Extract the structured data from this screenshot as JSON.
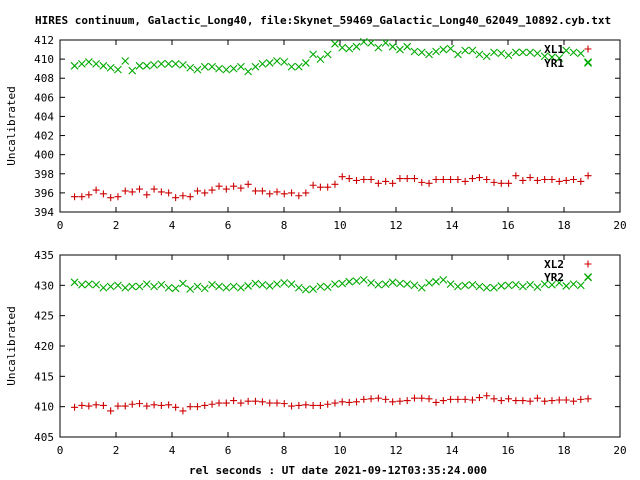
{
  "title": "HIRES continuum, Galactic_Long40, file:Skynet_59469_Galactic_Long40_62049_10892.cyb.txt",
  "xlabel": "rel seconds : UT date 2021-09-12T03:35:24.000",
  "colors": {
    "red": "#cc0000",
    "green": "#00aa00",
    "axis": "#000000",
    "background": "#ffffff"
  },
  "chart_data": [
    {
      "type": "scatter",
      "ylabel": "Uncalibrated",
      "xlim": [
        0,
        20
      ],
      "ylim": [
        394,
        412
      ],
      "xticks": [
        0,
        2,
        4,
        6,
        8,
        10,
        12,
        14,
        16,
        18,
        20
      ],
      "yticks": [
        394,
        396,
        398,
        400,
        402,
        404,
        406,
        408,
        410,
        412
      ],
      "grid": false,
      "legend_position": "top-right",
      "x": [
        0.52,
        0.78,
        1.03,
        1.29,
        1.55,
        1.81,
        2.07,
        2.33,
        2.58,
        2.84,
        3.1,
        3.36,
        3.62,
        3.88,
        4.13,
        4.39,
        4.65,
        4.91,
        5.17,
        5.43,
        5.68,
        5.94,
        6.2,
        6.46,
        6.72,
        6.98,
        7.23,
        7.49,
        7.75,
        8.01,
        8.27,
        8.53,
        8.78,
        9.04,
        9.3,
        9.56,
        9.82,
        10.08,
        10.33,
        10.59,
        10.85,
        11.11,
        11.37,
        11.63,
        11.88,
        12.14,
        12.4,
        12.66,
        12.92,
        13.18,
        13.43,
        13.69,
        13.95,
        14.21,
        14.47,
        14.73,
        14.98,
        15.24,
        15.5,
        15.76,
        16.02,
        16.28,
        16.53,
        16.79,
        17.05,
        17.31,
        17.57,
        17.83,
        18.08,
        18.34,
        18.6,
        18.86
      ],
      "series": [
        {
          "name": "XL1",
          "marker": "plus",
          "color": "#cc0000",
          "values": [
            395.6,
            395.6,
            395.8,
            396.3,
            395.9,
            395.5,
            395.6,
            396.2,
            396.1,
            396.4,
            395.8,
            396.4,
            396.1,
            396.0,
            395.5,
            395.7,
            395.6,
            396.2,
            396.0,
            396.3,
            396.7,
            396.4,
            396.7,
            396.5,
            396.9,
            396.2,
            396.2,
            395.9,
            396.1,
            395.9,
            396.0,
            395.7,
            396.0,
            396.8,
            396.6,
            396.6,
            396.9,
            397.7,
            397.5,
            397.3,
            397.4,
            397.4,
            397.0,
            397.2,
            397.0,
            397.5,
            397.5,
            397.5,
            397.1,
            397.0,
            397.4,
            397.4,
            397.4,
            397.4,
            397.2,
            397.5,
            397.6,
            397.4,
            397.1,
            397.0,
            397.0,
            397.8,
            397.3,
            397.6,
            397.3,
            397.4,
            397.4,
            397.2,
            397.3,
            397.4,
            397.2,
            397.8
          ]
        },
        {
          "name": "YR1",
          "marker": "cross",
          "color": "#00aa00",
          "values": [
            409.3,
            409.5,
            409.7,
            409.5,
            409.3,
            409.1,
            408.9,
            409.8,
            408.8,
            409.3,
            409.3,
            409.4,
            409.5,
            409.5,
            409.5,
            409.4,
            409.1,
            408.9,
            409.2,
            409.2,
            409.0,
            408.9,
            409.0,
            409.2,
            408.7,
            409.2,
            409.5,
            409.6,
            409.8,
            409.7,
            409.2,
            409.2,
            409.6,
            410.5,
            410.0,
            410.5,
            411.6,
            411.2,
            411.1,
            411.3,
            411.8,
            411.7,
            411.2,
            411.7,
            411.3,
            411.0,
            411.3,
            410.8,
            410.7,
            410.5,
            410.8,
            411.0,
            411.1,
            410.5,
            410.9,
            410.9,
            410.5,
            410.3,
            410.7,
            410.6,
            410.4,
            410.7,
            410.7,
            410.7,
            410.6,
            410.3,
            410.2,
            410.1,
            410.9,
            410.7,
            410.6,
            409.7
          ]
        }
      ]
    },
    {
      "type": "scatter",
      "ylabel": "Uncalibrated",
      "xlim": [
        0,
        20
      ],
      "ylim": [
        405,
        435
      ],
      "xticks": [
        0,
        2,
        4,
        6,
        8,
        10,
        12,
        14,
        16,
        18,
        20
      ],
      "yticks": [
        405,
        410,
        415,
        420,
        425,
        430,
        435
      ],
      "grid": false,
      "legend_position": "top-right",
      "x": [
        0.52,
        0.78,
        1.03,
        1.29,
        1.55,
        1.81,
        2.07,
        2.33,
        2.58,
        2.84,
        3.1,
        3.36,
        3.62,
        3.88,
        4.13,
        4.39,
        4.65,
        4.91,
        5.17,
        5.43,
        5.68,
        5.94,
        6.2,
        6.46,
        6.72,
        6.98,
        7.23,
        7.49,
        7.75,
        8.01,
        8.27,
        8.53,
        8.78,
        9.04,
        9.3,
        9.56,
        9.82,
        10.08,
        10.33,
        10.59,
        10.85,
        11.11,
        11.37,
        11.63,
        11.88,
        12.14,
        12.4,
        12.66,
        12.92,
        13.18,
        13.43,
        13.69,
        13.95,
        14.21,
        14.47,
        14.73,
        14.98,
        15.24,
        15.5,
        15.76,
        16.02,
        16.28,
        16.53,
        16.79,
        17.05,
        17.31,
        17.57,
        17.83,
        18.08,
        18.34,
        18.6,
        18.86
      ],
      "series": [
        {
          "name": "XL2",
          "marker": "plus",
          "color": "#cc0000",
          "values": [
            409.9,
            410.2,
            410.1,
            410.3,
            410.2,
            409.3,
            410.1,
            410.1,
            410.4,
            410.5,
            410.1,
            410.3,
            410.2,
            410.3,
            409.9,
            409.3,
            410.0,
            410.0,
            410.2,
            410.4,
            410.6,
            410.6,
            411.0,
            410.6,
            410.9,
            410.9,
            410.8,
            410.6,
            410.6,
            410.5,
            410.1,
            410.2,
            410.3,
            410.2,
            410.2,
            410.4,
            410.6,
            410.8,
            410.7,
            410.8,
            411.2,
            411.3,
            411.4,
            411.2,
            410.8,
            410.9,
            411.0,
            411.4,
            411.4,
            411.3,
            410.7,
            411.0,
            411.2,
            411.2,
            411.2,
            411.1,
            411.5,
            411.8,
            411.3,
            411.0,
            411.3,
            411.0,
            411.0,
            410.9,
            411.4,
            410.9,
            411.0,
            411.1,
            411.1,
            410.9,
            411.2,
            411.3
          ]
        },
        {
          "name": "YR2",
          "marker": "cross",
          "color": "#00aa00",
          "values": [
            430.5,
            430.1,
            430.2,
            430.1,
            429.6,
            429.8,
            430.0,
            429.6,
            429.8,
            429.8,
            430.2,
            429.8,
            430.1,
            429.6,
            429.5,
            430.3,
            429.4,
            429.8,
            429.5,
            430.1,
            429.8,
            429.6,
            429.8,
            429.6,
            429.9,
            430.3,
            430.1,
            429.9,
            430.2,
            430.4,
            430.2,
            429.6,
            429.3,
            429.4,
            429.8,
            429.7,
            430.2,
            430.3,
            430.6,
            430.7,
            430.9,
            430.4,
            430.1,
            430.2,
            430.5,
            430.3,
            430.2,
            430.0,
            429.6,
            430.4,
            430.6,
            430.9,
            430.2,
            429.8,
            430.0,
            430.1,
            429.8,
            429.6,
            429.6,
            429.9,
            430.0,
            430.1,
            429.8,
            430.1,
            429.7,
            430.2,
            430.1,
            430.4,
            429.9,
            430.2,
            430.0,
            431.3
          ]
        }
      ]
    }
  ]
}
